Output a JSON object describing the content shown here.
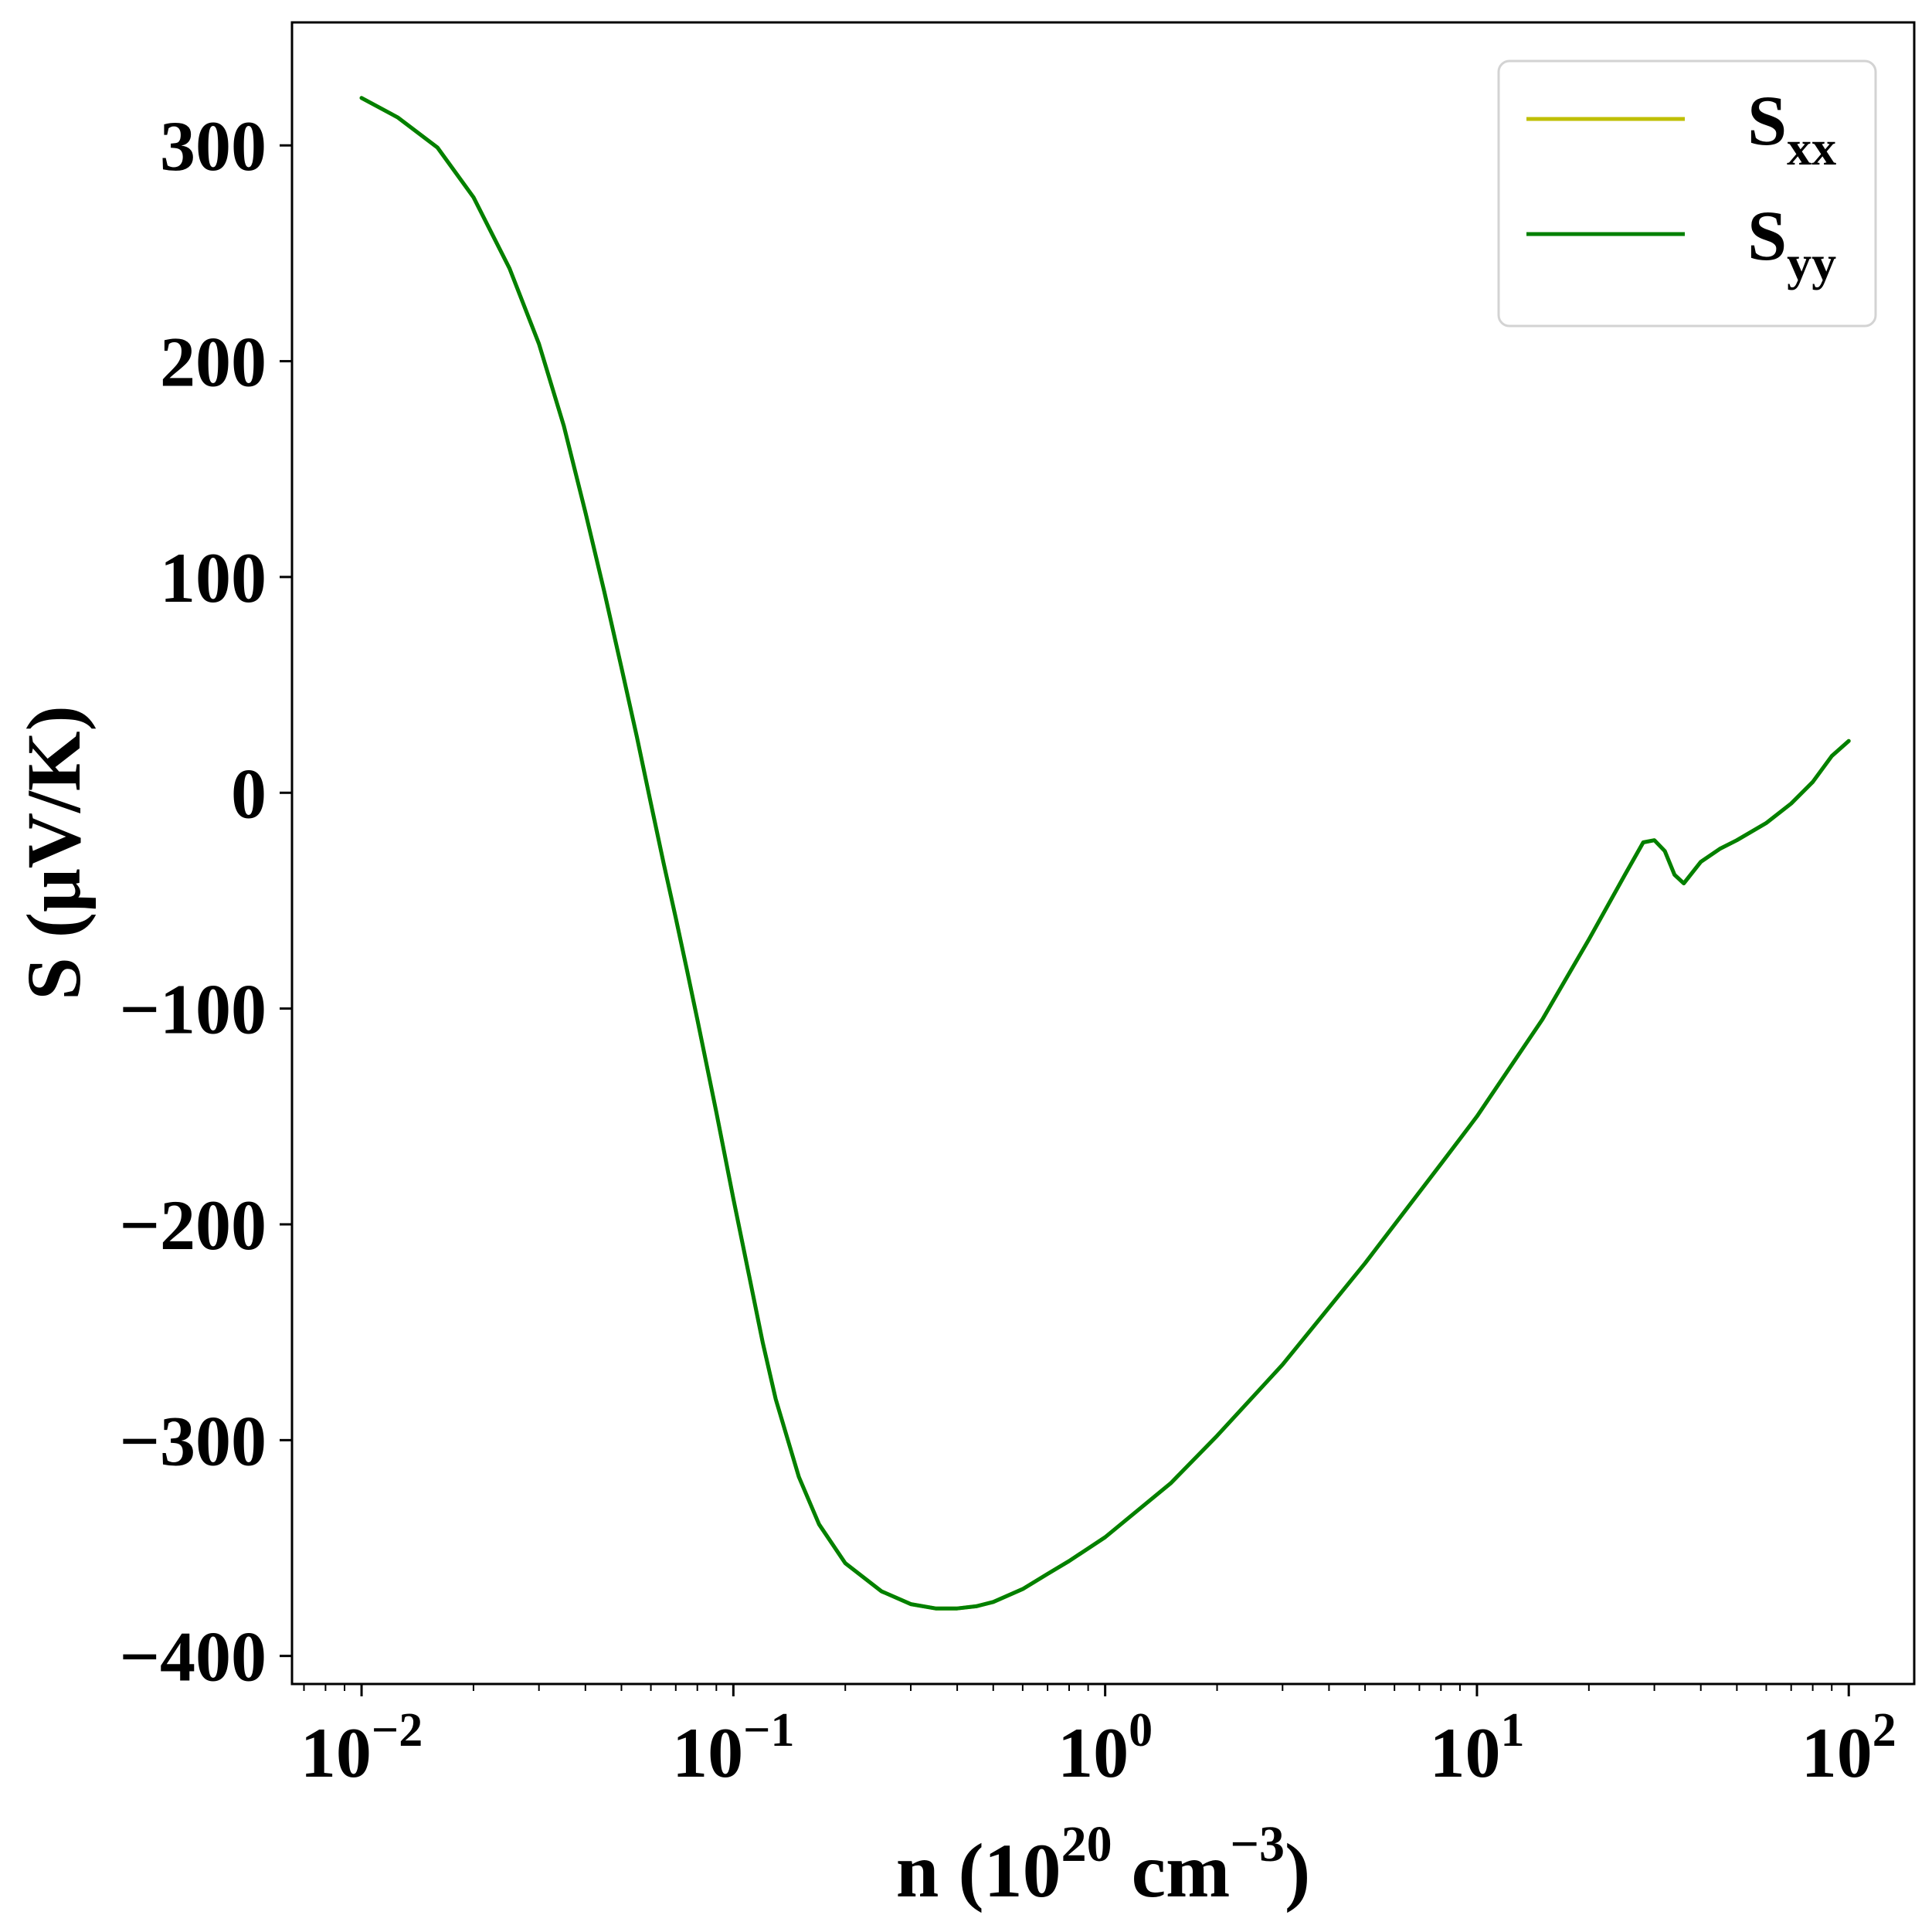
{
  "chart_data": {
    "type": "line",
    "xscale": "log",
    "yscale": "linear",
    "xlim": [
      0.0065,
      150
    ],
    "ylim": [
      -413,
      357
    ],
    "grid": false,
    "legend_position": "top-right",
    "xlabel": {
      "pre": "n (10",
      "sup1": "20",
      "mid": " cm",
      "sup2": "−3",
      "post": ")"
    },
    "ylabel": "S (μV/K)",
    "x_ticks": [
      {
        "value": 0.01,
        "base": "10",
        "exp": "−2"
      },
      {
        "value": 0.1,
        "base": "10",
        "exp": "−1"
      },
      {
        "value": 1,
        "base": "10",
        "exp": "0"
      },
      {
        "value": 10,
        "base": "10",
        "exp": "1"
      },
      {
        "value": 100,
        "base": "10",
        "exp": "2"
      }
    ],
    "y_ticks": [
      {
        "value": 300,
        "label": "300"
      },
      {
        "value": 200,
        "label": "200"
      },
      {
        "value": 100,
        "label": "100"
      },
      {
        "value": 0,
        "label": "0"
      },
      {
        "value": -100,
        "label": "−100"
      },
      {
        "value": -200,
        "label": "−200"
      },
      {
        "value": -300,
        "label": "−300"
      },
      {
        "value": -400,
        "label": "−400"
      }
    ],
    "series": [
      {
        "name": "S_xx",
        "legend_main": "S",
        "legend_sub": "xx",
        "color": "#bfbf00",
        "x": [
          0.01,
          0.0125,
          0.016,
          0.02,
          0.025,
          0.03,
          0.035,
          0.04,
          0.045,
          0.05,
          0.055,
          0.06,
          0.065,
          0.07,
          0.075,
          0.08,
          0.09,
          0.1,
          0.11,
          0.12,
          0.13,
          0.15,
          0.17,
          0.2,
          0.25,
          0.3,
          0.35,
          0.4,
          0.45,
          0.5,
          0.6,
          0.7,
          0.8,
          1.0,
          1.5,
          2.0,
          3.0,
          5.0,
          8.0,
          10,
          15,
          20,
          25,
          28,
          30,
          32,
          34,
          36,
          40,
          45,
          50,
          60,
          70,
          80,
          90,
          100
        ],
        "y": [
          322,
          313,
          299,
          276,
          243,
          208,
          170,
          130,
          93,
          58,
          26,
          -5,
          -33,
          -58,
          -82,
          -105,
          -148,
          -188,
          -223,
          -255,
          -281,
          -317,
          -339,
          -357,
          -370,
          -376,
          -378,
          -378,
          -377,
          -375,
          -369,
          -362,
          -356,
          -345,
          -320,
          -298,
          -265,
          -218,
          -172,
          -150,
          -105,
          -68,
          -38,
          -23,
          -22,
          -27,
          -38,
          -42,
          -32,
          -26,
          -22,
          -14,
          -5,
          5,
          17,
          24
        ]
      },
      {
        "name": "S_yy",
        "legend_main": "S",
        "legend_sub": "yy",
        "color": "#008000",
        "x": [
          0.01,
          0.0125,
          0.016,
          0.02,
          0.025,
          0.03,
          0.035,
          0.04,
          0.045,
          0.05,
          0.055,
          0.06,
          0.065,
          0.07,
          0.075,
          0.08,
          0.09,
          0.1,
          0.11,
          0.12,
          0.13,
          0.15,
          0.17,
          0.2,
          0.25,
          0.3,
          0.35,
          0.4,
          0.45,
          0.5,
          0.6,
          0.7,
          0.8,
          1.0,
          1.5,
          2.0,
          3.0,
          5.0,
          8.0,
          10,
          15,
          20,
          25,
          28,
          30,
          32,
          34,
          36,
          40,
          45,
          50,
          60,
          70,
          80,
          90,
          100
        ],
        "y": [
          322,
          313,
          299,
          276,
          243,
          208,
          170,
          130,
          93,
          58,
          26,
          -5,
          -33,
          -58,
          -82,
          -105,
          -148,
          -188,
          -223,
          -255,
          -281,
          -317,
          -339,
          -357,
          -370,
          -376,
          -378,
          -378,
          -377,
          -375,
          -369,
          -362,
          -356,
          -345,
          -320,
          -298,
          -265,
          -218,
          -172,
          -150,
          -105,
          -68,
          -38,
          -23,
          -22,
          -27,
          -38,
          -42,
          -32,
          -26,
          -22,
          -14,
          -5,
          5,
          17,
          24
        ]
      }
    ]
  }
}
